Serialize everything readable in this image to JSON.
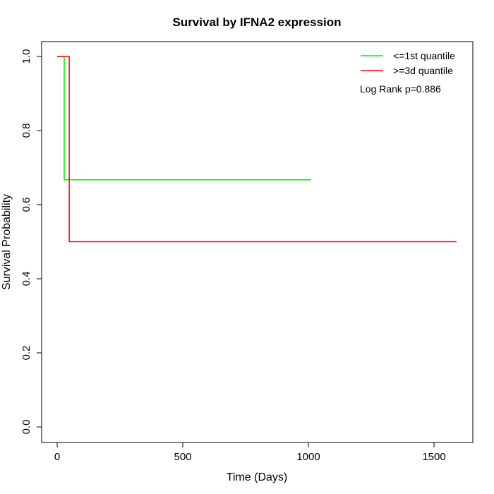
{
  "chart_data": {
    "type": "line",
    "title": "Survival by IFNA2 expression",
    "xlabel": "Time (Days)",
    "ylabel": "Survival Probability",
    "xlim": [
      -60,
      1650
    ],
    "ylim": [
      -0.04,
      1.04
    ],
    "xticks": [
      0,
      500,
      1000,
      1500
    ],
    "yticks": [
      0.0,
      0.2,
      0.4,
      0.6,
      0.8,
      1.0
    ],
    "xtick_labels": [
      "0",
      "500",
      "1000",
      "1500"
    ],
    "ytick_labels": [
      "0.0",
      "0.2",
      "0.4",
      "0.6",
      "0.8",
      "1.0"
    ],
    "grid": false,
    "legend_position": "top-right",
    "annotation": "Log Rank p=0.886",
    "series": [
      {
        "name": "<=1st quantile",
        "color": "#00ee00",
        "step": true,
        "x": [
          0,
          28,
          28,
          1011
        ],
        "y": [
          1.0,
          1.0,
          0.667,
          0.667
        ]
      },
      {
        "name": ">=3d quantile",
        "color": "#ff0000",
        "step": true,
        "x": [
          0,
          48,
          48,
          1590
        ],
        "y": [
          1.0,
          1.0,
          0.5,
          0.5
        ]
      }
    ]
  }
}
